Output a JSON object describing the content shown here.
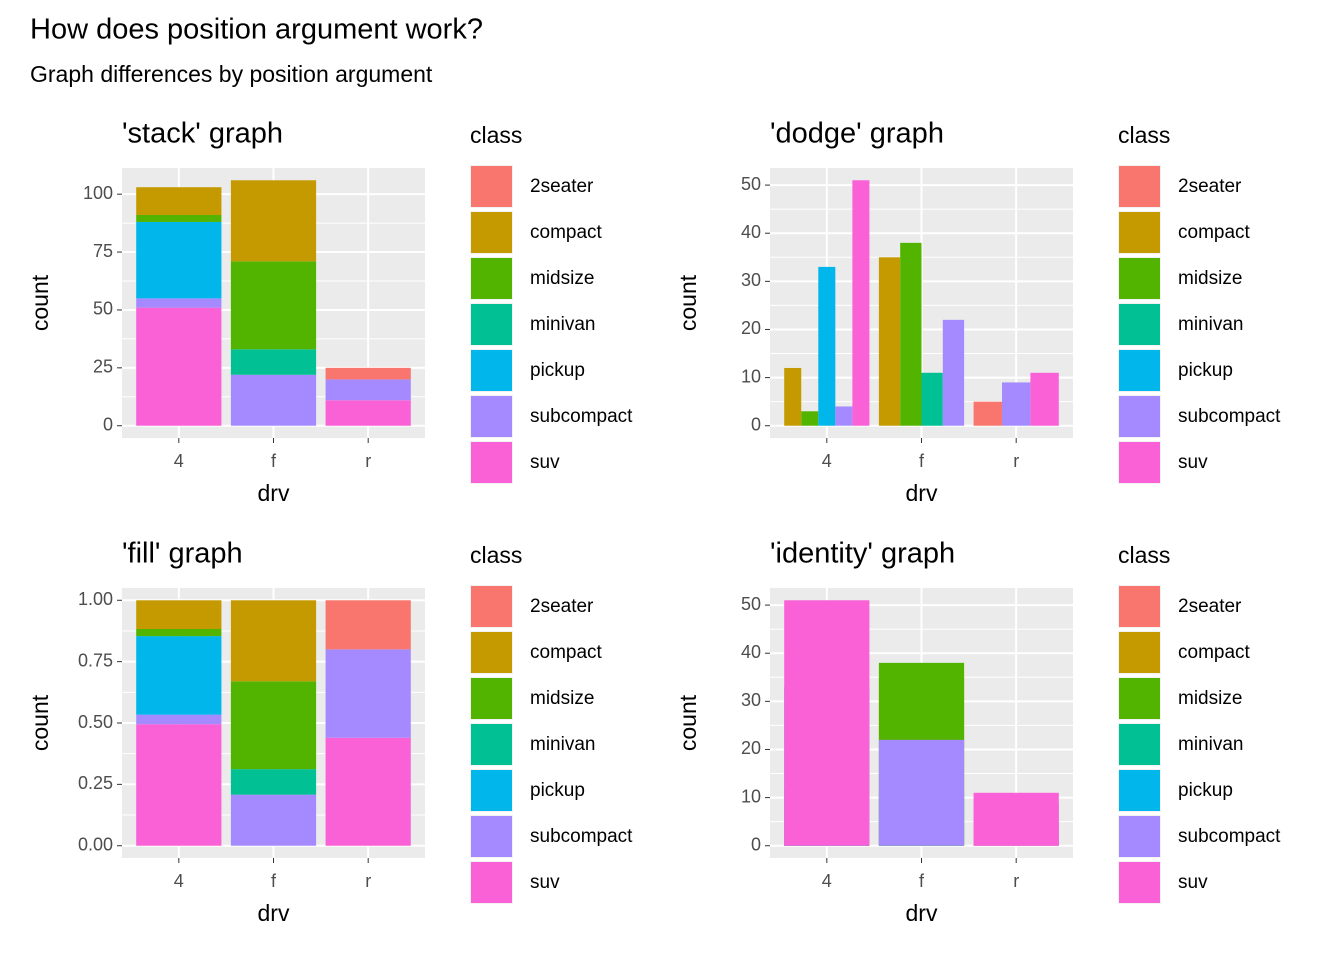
{
  "title": "How does position argument work?",
  "subtitle": "Graph differences by position argument",
  "chart_data": [
    {
      "type": "bar",
      "position": "stack",
      "title": "'stack' graph",
      "x_label": "drv",
      "y_label": "count",
      "legend_title": "class",
      "categories": [
        "4",
        "f",
        "r"
      ],
      "series": [
        {
          "name": "2seater",
          "color": "#F8766D",
          "values": [
            null,
            null,
            5
          ]
        },
        {
          "name": "compact",
          "color": "#C49A00",
          "values": [
            12,
            35,
            null
          ]
        },
        {
          "name": "midsize",
          "color": "#53B400",
          "values": [
            3,
            38,
            null
          ]
        },
        {
          "name": "minivan",
          "color": "#00C094",
          "values": [
            null,
            11,
            null
          ]
        },
        {
          "name": "pickup",
          "color": "#00B6EB",
          "values": [
            33,
            null,
            null
          ]
        },
        {
          "name": "subcompact",
          "color": "#A58AFF",
          "values": [
            4,
            22,
            9
          ]
        },
        {
          "name": "suv",
          "color": "#FB61D7",
          "values": [
            51,
            null,
            11
          ]
        }
      ],
      "ylim": [
        -5.3,
        111.3
      ],
      "yticks": [
        0,
        25,
        50,
        75,
        100
      ],
      "grid": true
    },
    {
      "type": "bar",
      "position": "dodge",
      "title": "'dodge' graph",
      "x_label": "drv",
      "y_label": "count",
      "legend_title": "class",
      "categories": [
        "4",
        "f",
        "r"
      ],
      "series": [
        {
          "name": "2seater",
          "color": "#F8766D",
          "values": [
            null,
            null,
            5
          ]
        },
        {
          "name": "compact",
          "color": "#C49A00",
          "values": [
            12,
            35,
            null
          ]
        },
        {
          "name": "midsize",
          "color": "#53B400",
          "values": [
            3,
            38,
            null
          ]
        },
        {
          "name": "minivan",
          "color": "#00C094",
          "values": [
            null,
            11,
            null
          ]
        },
        {
          "name": "pickup",
          "color": "#00B6EB",
          "values": [
            33,
            null,
            null
          ]
        },
        {
          "name": "subcompact",
          "color": "#A58AFF",
          "values": [
            4,
            22,
            9
          ]
        },
        {
          "name": "suv",
          "color": "#FB61D7",
          "values": [
            51,
            null,
            11
          ]
        }
      ],
      "ylim": [
        -2.55,
        53.55
      ],
      "yticks": [
        0,
        10,
        20,
        30,
        40,
        50
      ],
      "grid": true
    },
    {
      "type": "bar",
      "position": "fill",
      "title": "'fill' graph",
      "x_label": "drv",
      "y_label": "count",
      "legend_title": "class",
      "categories": [
        "4",
        "f",
        "r"
      ],
      "series": [
        {
          "name": "2seater",
          "color": "#F8766D",
          "values": [
            null,
            null,
            0.2
          ]
        },
        {
          "name": "compact",
          "color": "#C49A00",
          "values": [
            0.117,
            0.33,
            null
          ]
        },
        {
          "name": "midsize",
          "color": "#53B400",
          "values": [
            0.029,
            0.358,
            null
          ]
        },
        {
          "name": "minivan",
          "color": "#00C094",
          "values": [
            null,
            0.104,
            null
          ]
        },
        {
          "name": "pickup",
          "color": "#00B6EB",
          "values": [
            0.32,
            null,
            null
          ]
        },
        {
          "name": "subcompact",
          "color": "#A58AFF",
          "values": [
            0.039,
            0.208,
            0.36
          ]
        },
        {
          "name": "suv",
          "color": "#FB61D7",
          "values": [
            0.495,
            null,
            0.44
          ]
        }
      ],
      "ylim": [
        -0.05,
        1.05
      ],
      "yticks": [
        {
          "value": 0,
          "label": "0.00"
        },
        {
          "value": 0.25,
          "label": "0.25"
        },
        {
          "value": 0.5,
          "label": "0.50"
        },
        {
          "value": 0.75,
          "label": "0.75"
        },
        {
          "value": 1,
          "label": "1.00"
        }
      ],
      "grid": true
    },
    {
      "type": "bar",
      "position": "identity",
      "title": "'identity' graph",
      "x_label": "drv",
      "y_label": "count",
      "legend_title": "class",
      "categories": [
        "4",
        "f",
        "r"
      ],
      "series": [
        {
          "name": "2seater",
          "color": "#F8766D",
          "values": [
            null,
            null,
            5
          ]
        },
        {
          "name": "compact",
          "color": "#C49A00",
          "values": [
            12,
            35,
            null
          ]
        },
        {
          "name": "midsize",
          "color": "#53B400",
          "values": [
            3,
            38,
            null
          ]
        },
        {
          "name": "minivan",
          "color": "#00C094",
          "values": [
            null,
            11,
            null
          ]
        },
        {
          "name": "pickup",
          "color": "#00B6EB",
          "values": [
            33,
            null,
            null
          ]
        },
        {
          "name": "subcompact",
          "color": "#A58AFF",
          "values": [
            4,
            22,
            9
          ]
        },
        {
          "name": "suv",
          "color": "#FB61D7",
          "values": [
            51,
            null,
            11
          ]
        }
      ],
      "ylim": [
        -2.55,
        53.55
      ],
      "yticks": [
        0,
        10,
        20,
        30,
        40,
        50
      ],
      "grid": true
    }
  ]
}
